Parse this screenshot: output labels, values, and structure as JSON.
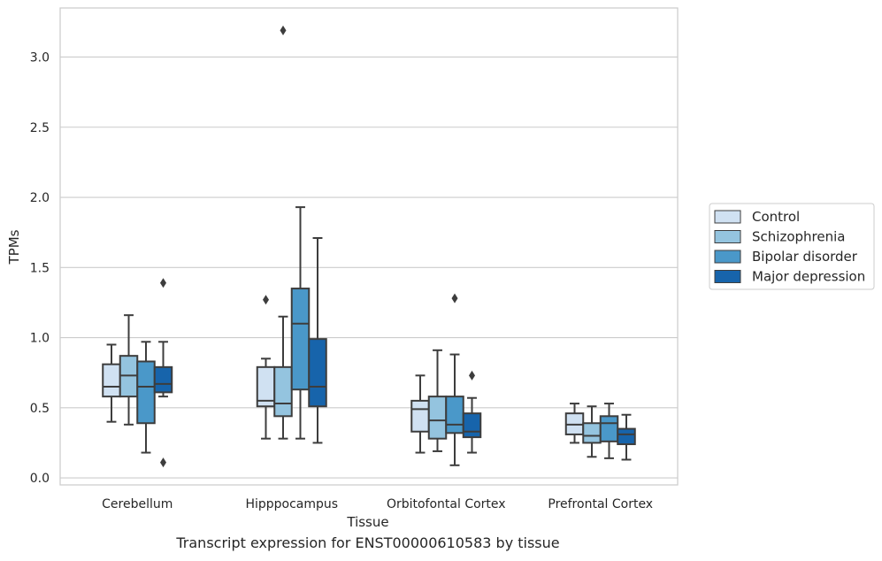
{
  "caption": "Transcript expression for ENST00000610583 by tissue",
  "chart_data": {
    "type": "box",
    "title": "",
    "xlabel": "Tissue",
    "ylabel": "TPMs",
    "ylim": [
      -0.05,
      3.35
    ],
    "yticks": [
      "0.0",
      "0.5",
      "1.0",
      "1.5",
      "2.0",
      "2.5",
      "3.0"
    ],
    "grid": "horizontal",
    "legend_position": "right",
    "categories": [
      "Cerebellum",
      "Hipppocampus",
      "Orbitofontal Cortex",
      "Prefrontal Cortex"
    ],
    "series": [
      {
        "name": "Control",
        "color": "#d0e1f2",
        "boxes": [
          {
            "whislo": 0.4,
            "q1": 0.58,
            "med": 0.65,
            "q3": 0.81,
            "whishi": 0.95,
            "fliers": []
          },
          {
            "whislo": 0.28,
            "q1": 0.51,
            "med": 0.55,
            "q3": 0.79,
            "whishi": 0.85,
            "fliers": [
              1.27
            ]
          },
          {
            "whislo": 0.18,
            "q1": 0.33,
            "med": 0.49,
            "q3": 0.55,
            "whishi": 0.73,
            "fliers": []
          },
          {
            "whislo": 0.25,
            "q1": 0.31,
            "med": 0.38,
            "q3": 0.46,
            "whishi": 0.53,
            "fliers": []
          }
        ]
      },
      {
        "name": "Schizophrenia",
        "color": "#94c4df",
        "boxes": [
          {
            "whislo": 0.38,
            "q1": 0.58,
            "med": 0.73,
            "q3": 0.87,
            "whishi": 1.16,
            "fliers": []
          },
          {
            "whislo": 0.28,
            "q1": 0.44,
            "med": 0.53,
            "q3": 0.79,
            "whishi": 1.15,
            "fliers": [
              3.19
            ]
          },
          {
            "whislo": 0.19,
            "q1": 0.28,
            "med": 0.41,
            "q3": 0.58,
            "whishi": 0.91,
            "fliers": []
          },
          {
            "whislo": 0.15,
            "q1": 0.25,
            "med": 0.3,
            "q3": 0.39,
            "whishi": 0.51,
            "fliers": []
          }
        ]
      },
      {
        "name": "Bipolar disorder",
        "color": "#4a98c9",
        "boxes": [
          {
            "whislo": 0.18,
            "q1": 0.39,
            "med": 0.65,
            "q3": 0.83,
            "whishi": 0.97,
            "fliers": []
          },
          {
            "whislo": 0.28,
            "q1": 0.63,
            "med": 1.1,
            "q3": 1.35,
            "whishi": 1.93,
            "fliers": []
          },
          {
            "whislo": 0.09,
            "q1": 0.32,
            "med": 0.38,
            "q3": 0.58,
            "whishi": 0.88,
            "fliers": [
              1.28
            ]
          },
          {
            "whislo": 0.14,
            "q1": 0.26,
            "med": 0.39,
            "q3": 0.44,
            "whishi": 0.53,
            "fliers": []
          }
        ]
      },
      {
        "name": "Major depression",
        "color": "#1764ab",
        "boxes": [
          {
            "whislo": 0.58,
            "q1": 0.61,
            "med": 0.67,
            "q3": 0.79,
            "whishi": 0.97,
            "fliers": [
              1.39,
              0.11
            ]
          },
          {
            "whislo": 0.25,
            "q1": 0.51,
            "med": 0.65,
            "q3": 0.99,
            "whishi": 1.71,
            "fliers": []
          },
          {
            "whislo": 0.18,
            "q1": 0.29,
            "med": 0.33,
            "q3": 0.46,
            "whishi": 0.57,
            "fliers": [
              0.73
            ]
          },
          {
            "whislo": 0.13,
            "q1": 0.24,
            "med": 0.31,
            "q3": 0.35,
            "whishi": 0.45,
            "fliers": []
          }
        ]
      }
    ]
  }
}
